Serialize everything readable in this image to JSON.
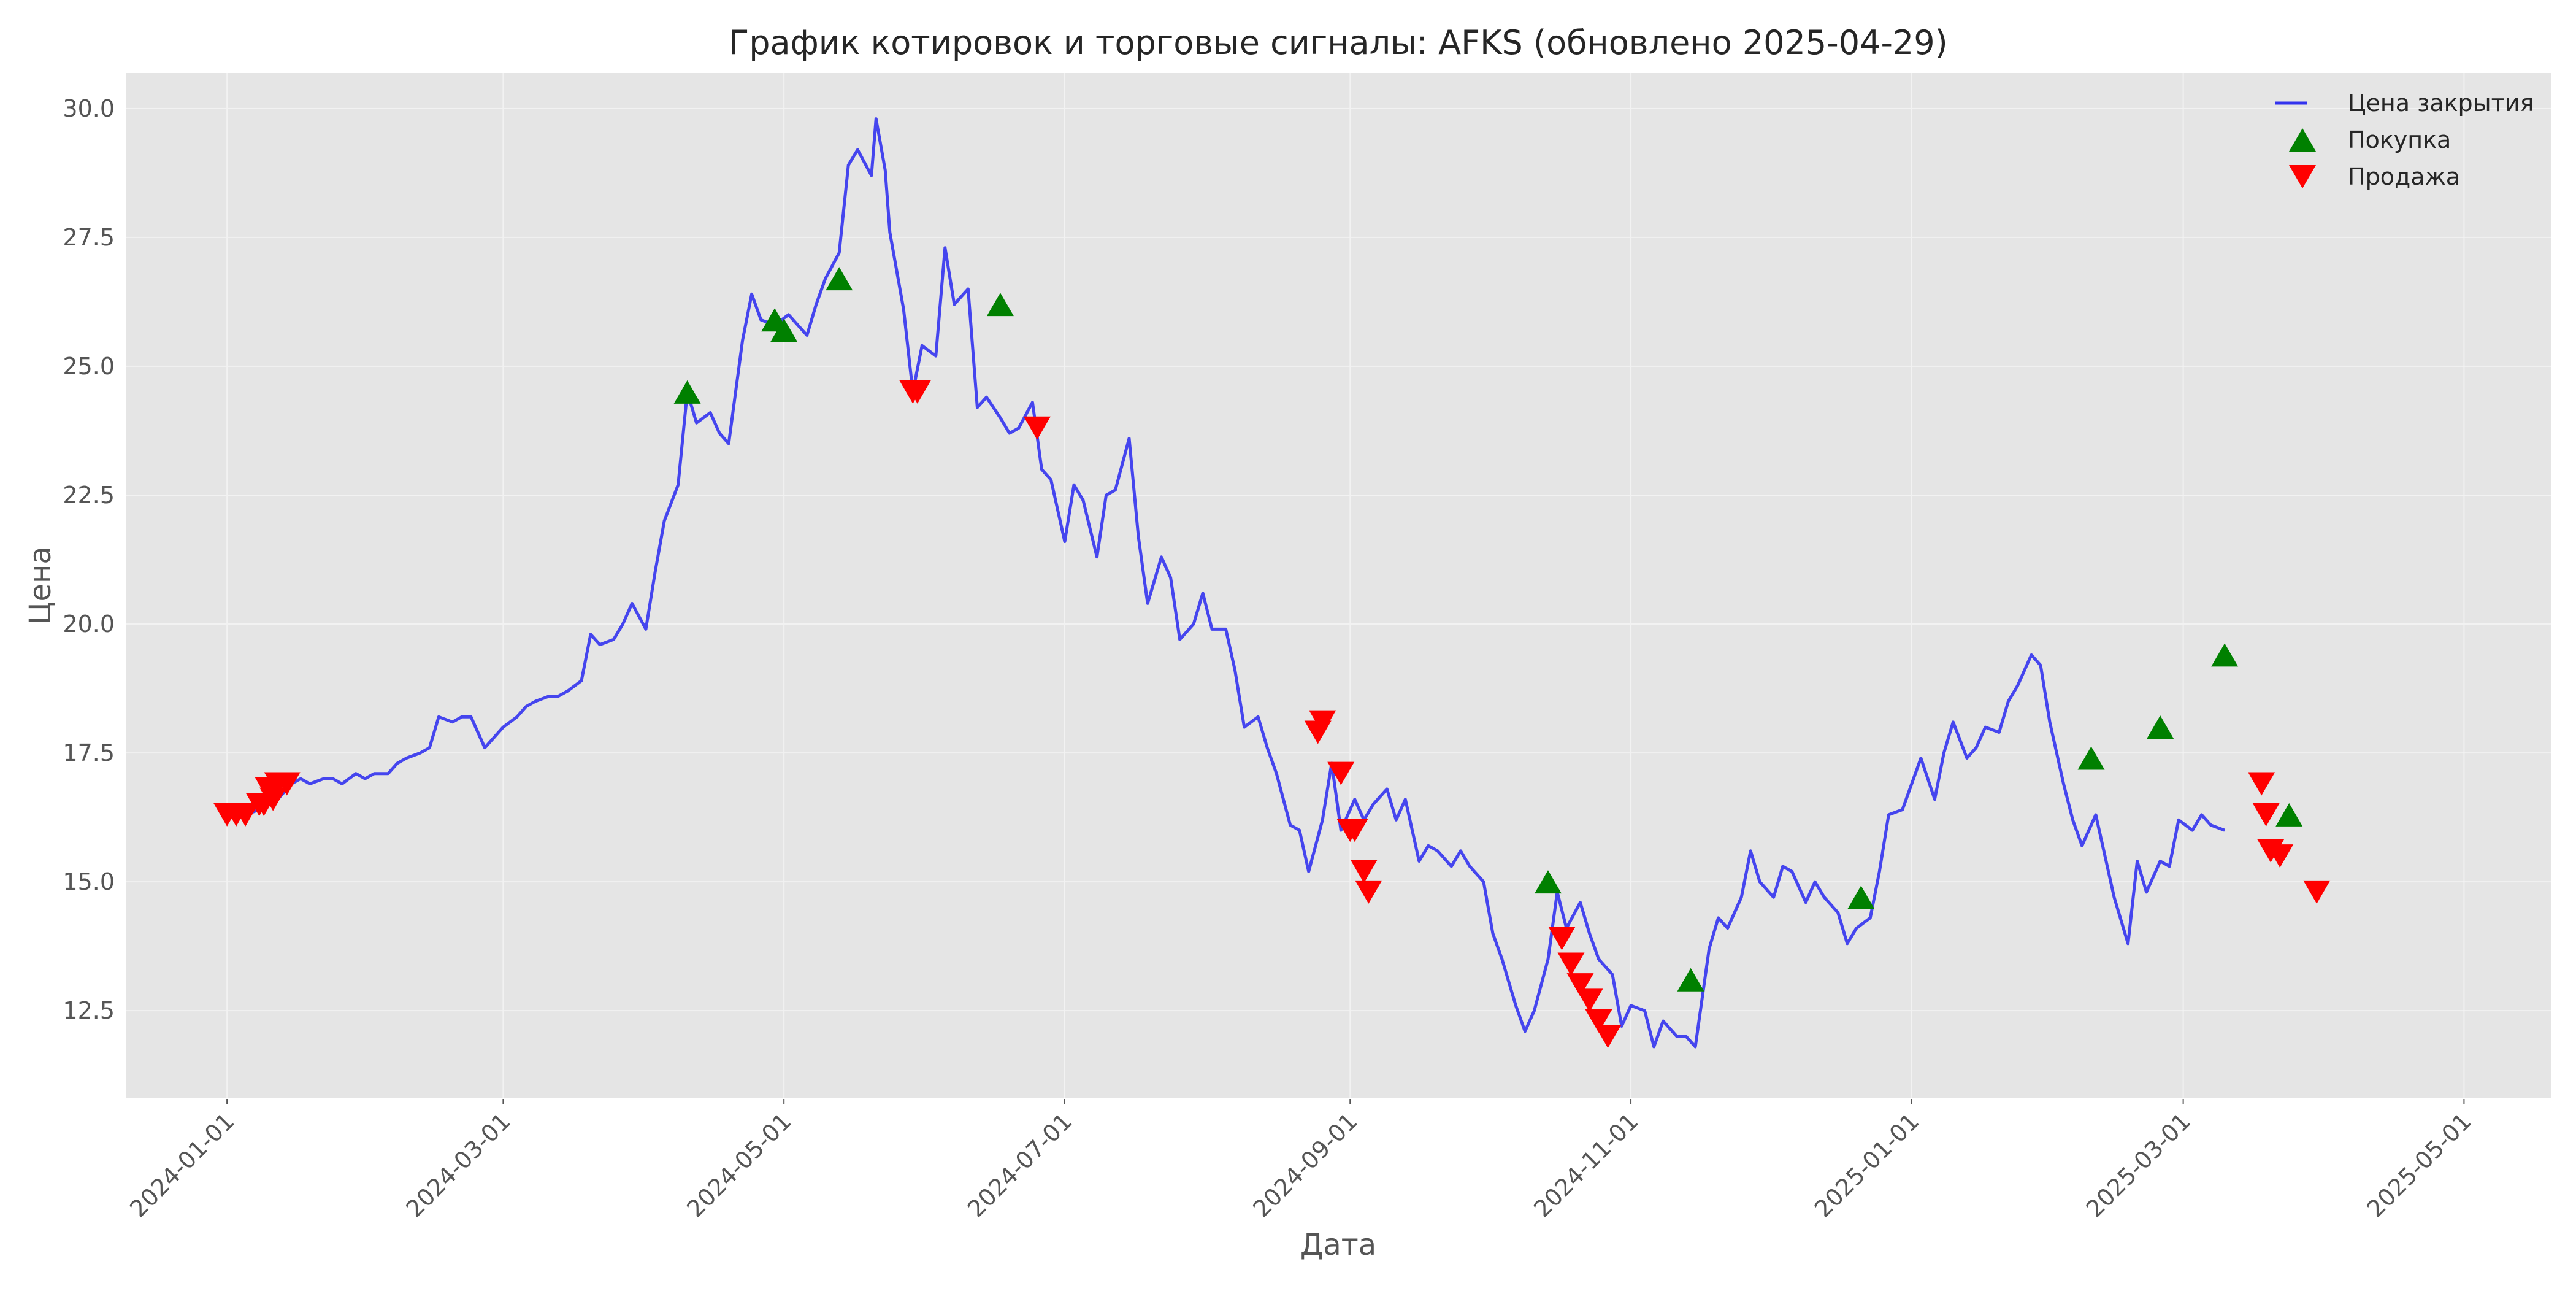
{
  "chart_data": {
    "type": "line",
    "title": "График котировок и торговые сигналы: AFKS (обновлено 2025-04-29)",
    "xlabel": "Дата",
    "ylabel": "Цена",
    "xlim": [
      "2023-12-10",
      "2025-05-20"
    ],
    "ylim": [
      10.8,
      30.7
    ],
    "grid": true,
    "legend_position": "top-right",
    "x_ticks": [
      "2024-01-01",
      "2024-03-01",
      "2024-05-01",
      "2024-07-01",
      "2024-09-01",
      "2024-11-01",
      "2025-01-01",
      "2025-03-01",
      "2025-05-01"
    ],
    "y_ticks": [
      12.5,
      15.0,
      17.5,
      20.0,
      22.5,
      25.0,
      27.5,
      30.0
    ],
    "y_tick_labels": [
      "12.5",
      "15.0",
      "17.5",
      "20.0",
      "22.5",
      "25.0",
      "27.5",
      "30.0"
    ],
    "series": [
      {
        "name": "Цена закрытия",
        "style": "line",
        "color": "#3333ee",
        "points": [
          [
            "2024-01-03",
            16.4
          ],
          [
            "2024-01-05",
            16.3
          ],
          [
            "2024-01-08",
            16.4
          ],
          [
            "2024-01-10",
            16.5
          ],
          [
            "2024-01-12",
            16.6
          ],
          [
            "2024-01-15",
            16.9
          ],
          [
            "2024-01-17",
            17.0
          ],
          [
            "2024-01-19",
            16.9
          ],
          [
            "2024-01-22",
            17.0
          ],
          [
            "2024-01-24",
            17.0
          ],
          [
            "2024-01-26",
            16.9
          ],
          [
            "2024-01-29",
            17.1
          ],
          [
            "2024-01-31",
            17.0
          ],
          [
            "2024-02-02",
            17.1
          ],
          [
            "2024-02-05",
            17.1
          ],
          [
            "2024-02-07",
            17.3
          ],
          [
            "2024-02-09",
            17.4
          ],
          [
            "2024-02-12",
            17.5
          ],
          [
            "2024-02-14",
            17.6
          ],
          [
            "2024-02-16",
            18.2
          ],
          [
            "2024-02-19",
            18.1
          ],
          [
            "2024-02-21",
            18.2
          ],
          [
            "2024-02-23",
            18.2
          ],
          [
            "2024-02-26",
            17.6
          ],
          [
            "2024-02-28",
            17.8
          ],
          [
            "2024-03-01",
            18.0
          ],
          [
            "2024-03-04",
            18.2
          ],
          [
            "2024-03-06",
            18.4
          ],
          [
            "2024-03-08",
            18.5
          ],
          [
            "2024-03-11",
            18.6
          ],
          [
            "2024-03-13",
            18.6
          ],
          [
            "2024-03-15",
            18.7
          ],
          [
            "2024-03-18",
            18.9
          ],
          [
            "2024-03-20",
            19.8
          ],
          [
            "2024-03-22",
            19.6
          ],
          [
            "2024-03-25",
            19.7
          ],
          [
            "2024-03-27",
            20.0
          ],
          [
            "2024-03-29",
            20.4
          ],
          [
            "2024-04-01",
            19.9
          ],
          [
            "2024-04-03",
            21.0
          ],
          [
            "2024-04-05",
            22.0
          ],
          [
            "2024-04-08",
            22.7
          ],
          [
            "2024-04-10",
            24.5
          ],
          [
            "2024-04-12",
            23.9
          ],
          [
            "2024-04-15",
            24.1
          ],
          [
            "2024-04-17",
            23.7
          ],
          [
            "2024-04-19",
            23.5
          ],
          [
            "2024-04-22",
            25.5
          ],
          [
            "2024-04-24",
            26.4
          ],
          [
            "2024-04-26",
            25.9
          ],
          [
            "2024-04-29",
            25.8
          ],
          [
            "2024-05-02",
            26.0
          ],
          [
            "2024-05-06",
            25.6
          ],
          [
            "2024-05-08",
            26.2
          ],
          [
            "2024-05-10",
            26.7
          ],
          [
            "2024-05-13",
            27.2
          ],
          [
            "2024-05-15",
            28.9
          ],
          [
            "2024-05-17",
            29.2
          ],
          [
            "2024-05-20",
            28.7
          ],
          [
            "2024-05-21",
            29.8
          ],
          [
            "2024-05-23",
            28.8
          ],
          [
            "2024-05-24",
            27.6
          ],
          [
            "2024-05-27",
            26.1
          ],
          [
            "2024-05-29",
            24.5
          ],
          [
            "2024-05-31",
            25.4
          ],
          [
            "2024-06-03",
            25.2
          ],
          [
            "2024-06-05",
            27.3
          ],
          [
            "2024-06-07",
            26.2
          ],
          [
            "2024-06-10",
            26.5
          ],
          [
            "2024-06-12",
            24.2
          ],
          [
            "2024-06-14",
            24.4
          ],
          [
            "2024-06-17",
            24.0
          ],
          [
            "2024-06-19",
            23.7
          ],
          [
            "2024-06-21",
            23.8
          ],
          [
            "2024-06-24",
            24.3
          ],
          [
            "2024-06-26",
            23.0
          ],
          [
            "2024-06-28",
            22.8
          ],
          [
            "2024-07-01",
            21.6
          ],
          [
            "2024-07-03",
            22.7
          ],
          [
            "2024-07-05",
            22.4
          ],
          [
            "2024-07-08",
            21.3
          ],
          [
            "2024-07-10",
            22.5
          ],
          [
            "2024-07-12",
            22.6
          ],
          [
            "2024-07-15",
            23.6
          ],
          [
            "2024-07-17",
            21.7
          ],
          [
            "2024-07-19",
            20.4
          ],
          [
            "2024-07-22",
            21.3
          ],
          [
            "2024-07-24",
            20.9
          ],
          [
            "2024-07-26",
            19.7
          ],
          [
            "2024-07-29",
            20.0
          ],
          [
            "2024-07-31",
            20.6
          ],
          [
            "2024-08-02",
            19.9
          ],
          [
            "2024-08-05",
            19.9
          ],
          [
            "2024-08-07",
            19.1
          ],
          [
            "2024-08-09",
            18.0
          ],
          [
            "2024-08-12",
            18.2
          ],
          [
            "2024-08-14",
            17.6
          ],
          [
            "2024-08-16",
            17.1
          ],
          [
            "2024-08-19",
            16.1
          ],
          [
            "2024-08-21",
            16.0
          ],
          [
            "2024-08-23",
            15.2
          ],
          [
            "2024-08-26",
            16.2
          ],
          [
            "2024-08-28",
            17.3
          ],
          [
            "2024-08-30",
            16.0
          ],
          [
            "2024-09-02",
            16.6
          ],
          [
            "2024-09-04",
            16.2
          ],
          [
            "2024-09-06",
            16.5
          ],
          [
            "2024-09-09",
            16.8
          ],
          [
            "2024-09-11",
            16.2
          ],
          [
            "2024-09-13",
            16.6
          ],
          [
            "2024-09-16",
            15.4
          ],
          [
            "2024-09-18",
            15.7
          ],
          [
            "2024-09-20",
            15.6
          ],
          [
            "2024-09-23",
            15.3
          ],
          [
            "2024-09-25",
            15.6
          ],
          [
            "2024-09-27",
            15.3
          ],
          [
            "2024-09-30",
            15.0
          ],
          [
            "2024-10-02",
            14.0
          ],
          [
            "2024-10-04",
            13.5
          ],
          [
            "2024-10-07",
            12.6
          ],
          [
            "2024-10-09",
            12.1
          ],
          [
            "2024-10-11",
            12.5
          ],
          [
            "2024-10-14",
            13.5
          ],
          [
            "2024-10-16",
            14.8
          ],
          [
            "2024-10-18",
            14.1
          ],
          [
            "2024-10-21",
            14.6
          ],
          [
            "2024-10-23",
            14.0
          ],
          [
            "2024-10-25",
            13.5
          ],
          [
            "2024-10-28",
            13.2
          ],
          [
            "2024-10-30",
            12.2
          ],
          [
            "2024-11-01",
            12.6
          ],
          [
            "2024-11-04",
            12.5
          ],
          [
            "2024-11-06",
            11.8
          ],
          [
            "2024-11-08",
            12.3
          ],
          [
            "2024-11-11",
            12.0
          ],
          [
            "2024-11-13",
            12.0
          ],
          [
            "2024-11-15",
            11.8
          ],
          [
            "2024-11-18",
            13.7
          ],
          [
            "2024-11-20",
            14.3
          ],
          [
            "2024-11-22",
            14.1
          ],
          [
            "2024-11-25",
            14.7
          ],
          [
            "2024-11-27",
            15.6
          ],
          [
            "2024-11-29",
            15.0
          ],
          [
            "2024-12-02",
            14.7
          ],
          [
            "2024-12-04",
            15.3
          ],
          [
            "2024-12-06",
            15.2
          ],
          [
            "2024-12-09",
            14.6
          ],
          [
            "2024-12-11",
            15.0
          ],
          [
            "2024-12-13",
            14.7
          ],
          [
            "2024-12-16",
            14.4
          ],
          [
            "2024-12-18",
            13.8
          ],
          [
            "2024-12-20",
            14.1
          ],
          [
            "2024-12-23",
            14.3
          ],
          [
            "2024-12-25",
            15.2
          ],
          [
            "2024-12-27",
            16.3
          ],
          [
            "2024-12-30",
            16.4
          ],
          [
            "2025-01-03",
            17.4
          ],
          [
            "2025-01-06",
            16.6
          ],
          [
            "2025-01-08",
            17.5
          ],
          [
            "2025-01-10",
            18.1
          ],
          [
            "2025-01-13",
            17.4
          ],
          [
            "2025-01-15",
            17.6
          ],
          [
            "2025-01-17",
            18.0
          ],
          [
            "2025-01-20",
            17.9
          ],
          [
            "2025-01-22",
            18.5
          ],
          [
            "2025-01-24",
            18.8
          ],
          [
            "2025-01-27",
            19.4
          ],
          [
            "2025-01-29",
            19.2
          ],
          [
            "2025-01-31",
            18.1
          ],
          [
            "2025-02-03",
            16.9
          ],
          [
            "2025-02-05",
            16.2
          ],
          [
            "2025-02-07",
            15.7
          ],
          [
            "2025-02-10",
            16.3
          ],
          [
            "2025-02-12",
            15.5
          ],
          [
            "2025-02-14",
            14.7
          ],
          [
            "2025-02-17",
            13.8
          ],
          [
            "2025-02-19",
            15.4
          ],
          [
            "2025-02-21",
            14.8
          ],
          [
            "2025-02-24",
            15.4
          ],
          [
            "2025-02-26",
            15.3
          ],
          [
            "2025-02-28",
            16.2
          ],
          [
            "2025-03-03",
            16.0
          ],
          [
            "2025-03-05",
            16.3
          ],
          [
            "2025-03-07",
            16.1
          ],
          [
            "2025-03-10",
            16.0
          ]
        ]
      },
      {
        "name": "Покупка",
        "style": "marker-up",
        "color": "#008000",
        "points": [
          [
            "2024-04-10",
            24.5
          ],
          [
            "2024-04-29",
            25.9
          ],
          [
            "2024-05-01",
            25.7
          ],
          [
            "2024-05-13",
            26.7
          ],
          [
            "2024-06-17",
            26.2
          ],
          [
            "2024-10-14",
            15.0
          ],
          [
            "2024-11-14",
            13.1
          ],
          [
            "2024-12-21",
            14.7
          ],
          [
            "2025-02-09",
            17.4
          ],
          [
            "2025-02-24",
            18.0
          ],
          [
            "2025-03-10",
            19.4
          ],
          [
            "2025-03-24",
            16.3
          ]
        ]
      },
      {
        "name": "Продажа",
        "style": "marker-down",
        "color": "#ff0000",
        "points": [
          [
            "2024-01-01",
            16.3
          ],
          [
            "2024-01-03",
            16.3
          ],
          [
            "2024-01-05",
            16.3
          ],
          [
            "2024-01-08",
            16.5
          ],
          [
            "2024-01-09",
            16.5
          ],
          [
            "2024-01-10",
            16.8
          ],
          [
            "2024-01-11",
            16.6
          ],
          [
            "2024-01-12",
            16.9
          ],
          [
            "2024-01-14",
            16.9
          ],
          [
            "2024-05-29",
            24.5
          ],
          [
            "2024-05-30",
            24.5
          ],
          [
            "2024-06-25",
            23.8
          ],
          [
            "2024-08-25",
            17.9
          ],
          [
            "2024-08-26",
            18.1
          ],
          [
            "2024-08-30",
            17.1
          ],
          [
            "2024-09-01",
            16.0
          ],
          [
            "2024-09-02",
            16.0
          ],
          [
            "2024-09-04",
            15.2
          ],
          [
            "2024-09-05",
            14.8
          ],
          [
            "2024-10-17",
            13.9
          ],
          [
            "2024-10-19",
            13.4
          ],
          [
            "2024-10-21",
            13.0
          ],
          [
            "2024-10-23",
            12.7
          ],
          [
            "2024-10-25",
            12.3
          ],
          [
            "2024-10-27",
            12.0
          ],
          [
            "2025-03-18",
            16.9
          ],
          [
            "2025-03-19",
            16.3
          ],
          [
            "2025-03-20",
            15.6
          ],
          [
            "2025-03-22",
            15.5
          ],
          [
            "2025-03-30",
            14.8
          ]
        ]
      }
    ]
  }
}
